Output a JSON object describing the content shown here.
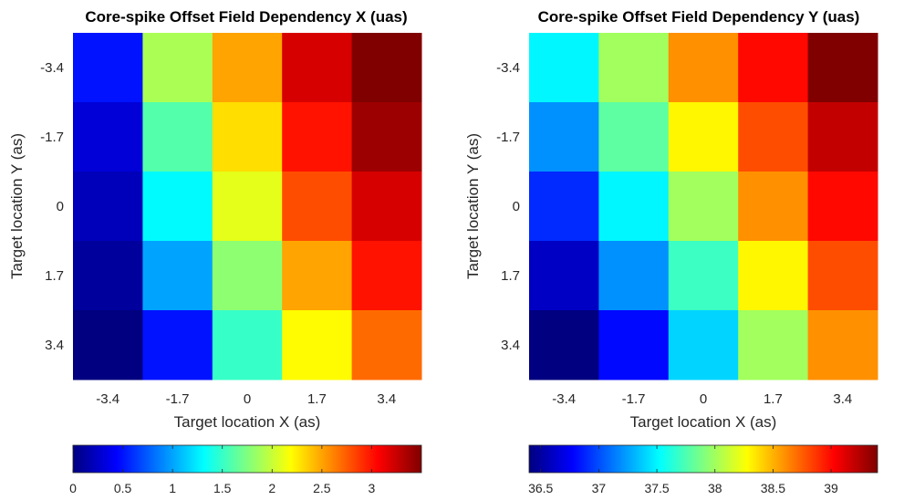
{
  "chart_data": [
    {
      "type": "heatmap",
      "title": "Core-spike Offset Field Dependency X (uas)",
      "xlabel": "Target location X (as)",
      "ylabel": "Target location Y (as)",
      "x_ticks": [
        "-3.4",
        "-1.7",
        "0",
        "1.7",
        "3.4"
      ],
      "y_ticks": [
        "-3.4",
        "-1.7",
        "0",
        "1.7",
        "3.4"
      ],
      "colormap": "jet",
      "clim": [
        0,
        3.5
      ],
      "colorbar_ticks": [
        "0",
        "0.5",
        "1",
        "1.5",
        "2",
        "2.5",
        "3"
      ],
      "colorbar_tick_values": [
        0,
        0.5,
        1,
        1.5,
        2,
        2.5,
        3
      ],
      "values": [
        [
          0.5,
          1.9,
          2.5,
          3.2,
          3.5
        ],
        [
          0.3,
          1.6,
          2.3,
          3.0,
          3.4
        ],
        [
          0.2,
          1.3,
          2.1,
          2.8,
          3.2
        ],
        [
          0.1,
          1.0,
          1.8,
          2.5,
          3.0
        ],
        [
          0.0,
          0.5,
          1.5,
          2.2,
          2.7
        ]
      ]
    },
    {
      "type": "heatmap",
      "title": "Core-spike Offset Field Dependency Y (uas)",
      "xlabel": "Target location X (as)",
      "ylabel": "Target location Y (as)",
      "x_ticks": [
        "-3.4",
        "-1.7",
        "0",
        "1.7",
        "3.4"
      ],
      "y_ticks": [
        "-3.4",
        "-1.7",
        "0",
        "1.7",
        "3.4"
      ],
      "colormap": "jet",
      "clim": [
        36.4,
        39.4
      ],
      "colorbar_ticks": [
        "36.5",
        "37",
        "37.5",
        "38",
        "38.5",
        "39"
      ],
      "colorbar_tick_values": [
        36.5,
        37,
        37.5,
        38,
        38.5,
        39
      ],
      "values": [
        [
          37.5,
          38.0,
          38.6,
          39.0,
          39.4
        ],
        [
          37.2,
          37.8,
          38.3,
          38.8,
          39.2
        ],
        [
          36.9,
          37.5,
          38.0,
          38.6,
          39.0
        ],
        [
          36.6,
          37.2,
          37.7,
          38.3,
          38.8
        ],
        [
          36.4,
          36.8,
          37.4,
          38.0,
          38.6
        ]
      ]
    }
  ]
}
